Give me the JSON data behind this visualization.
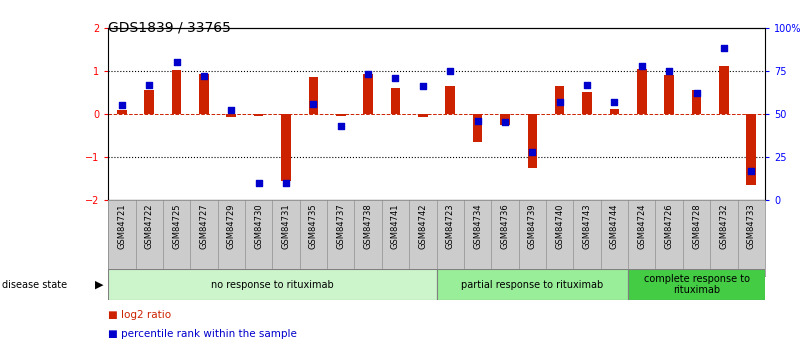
{
  "title": "GDS1839 / 33765",
  "samples": [
    "GSM84721",
    "GSM84722",
    "GSM84725",
    "GSM84727",
    "GSM84729",
    "GSM84730",
    "GSM84731",
    "GSM84735",
    "GSM84737",
    "GSM84738",
    "GSM84741",
    "GSM84742",
    "GSM84723",
    "GSM84734",
    "GSM84736",
    "GSM84739",
    "GSM84740",
    "GSM84743",
    "GSM84744",
    "GSM84724",
    "GSM84726",
    "GSM84728",
    "GSM84732",
    "GSM84733"
  ],
  "log2_ratio": [
    0.1,
    0.55,
    1.02,
    0.92,
    -0.08,
    -0.05,
    -1.55,
    0.85,
    -0.05,
    0.93,
    0.6,
    -0.08,
    0.65,
    -0.65,
    -0.25,
    -1.25,
    0.65,
    0.5,
    0.12,
    1.05,
    0.9,
    0.55,
    1.1,
    -1.65
  ],
  "percentile": [
    55,
    67,
    80,
    72,
    52,
    10,
    10,
    56,
    43,
    73,
    71,
    66,
    75,
    46,
    45,
    28,
    57,
    67,
    57,
    78,
    75,
    62,
    88,
    17
  ],
  "groups": [
    {
      "label": "no response to rituximab",
      "start": 0,
      "end": 12,
      "color": "#ccf5cc"
    },
    {
      "label": "partial response to rituximab",
      "start": 12,
      "end": 19,
      "color": "#99ee99"
    },
    {
      "label": "complete response to\nrituximab",
      "start": 19,
      "end": 24,
      "color": "#44cc44"
    }
  ],
  "bar_color": "#cc2200",
  "dot_color": "#0000cc",
  "ylim_left": [
    -2,
    2
  ],
  "ylim_right": [
    0,
    100
  ],
  "yticks_left": [
    -2,
    -1,
    0,
    1,
    2
  ],
  "yticks_right": [
    0,
    25,
    50,
    75,
    100
  ],
  "ytick_right_labels": [
    "0",
    "25",
    "50",
    "75",
    "100%"
  ],
  "bar_width": 0.35,
  "dot_size": 18,
  "legend_items": [
    {
      "label": "log2 ratio",
      "color": "#cc2200"
    },
    {
      "label": "percentile rank within the sample",
      "color": "#0000cc"
    }
  ],
  "disease_state_label": "disease state",
  "title_fontsize": 10,
  "tick_label_fontsize": 7,
  "sample_label_fontsize": 6,
  "group_label_fontsize": 7
}
